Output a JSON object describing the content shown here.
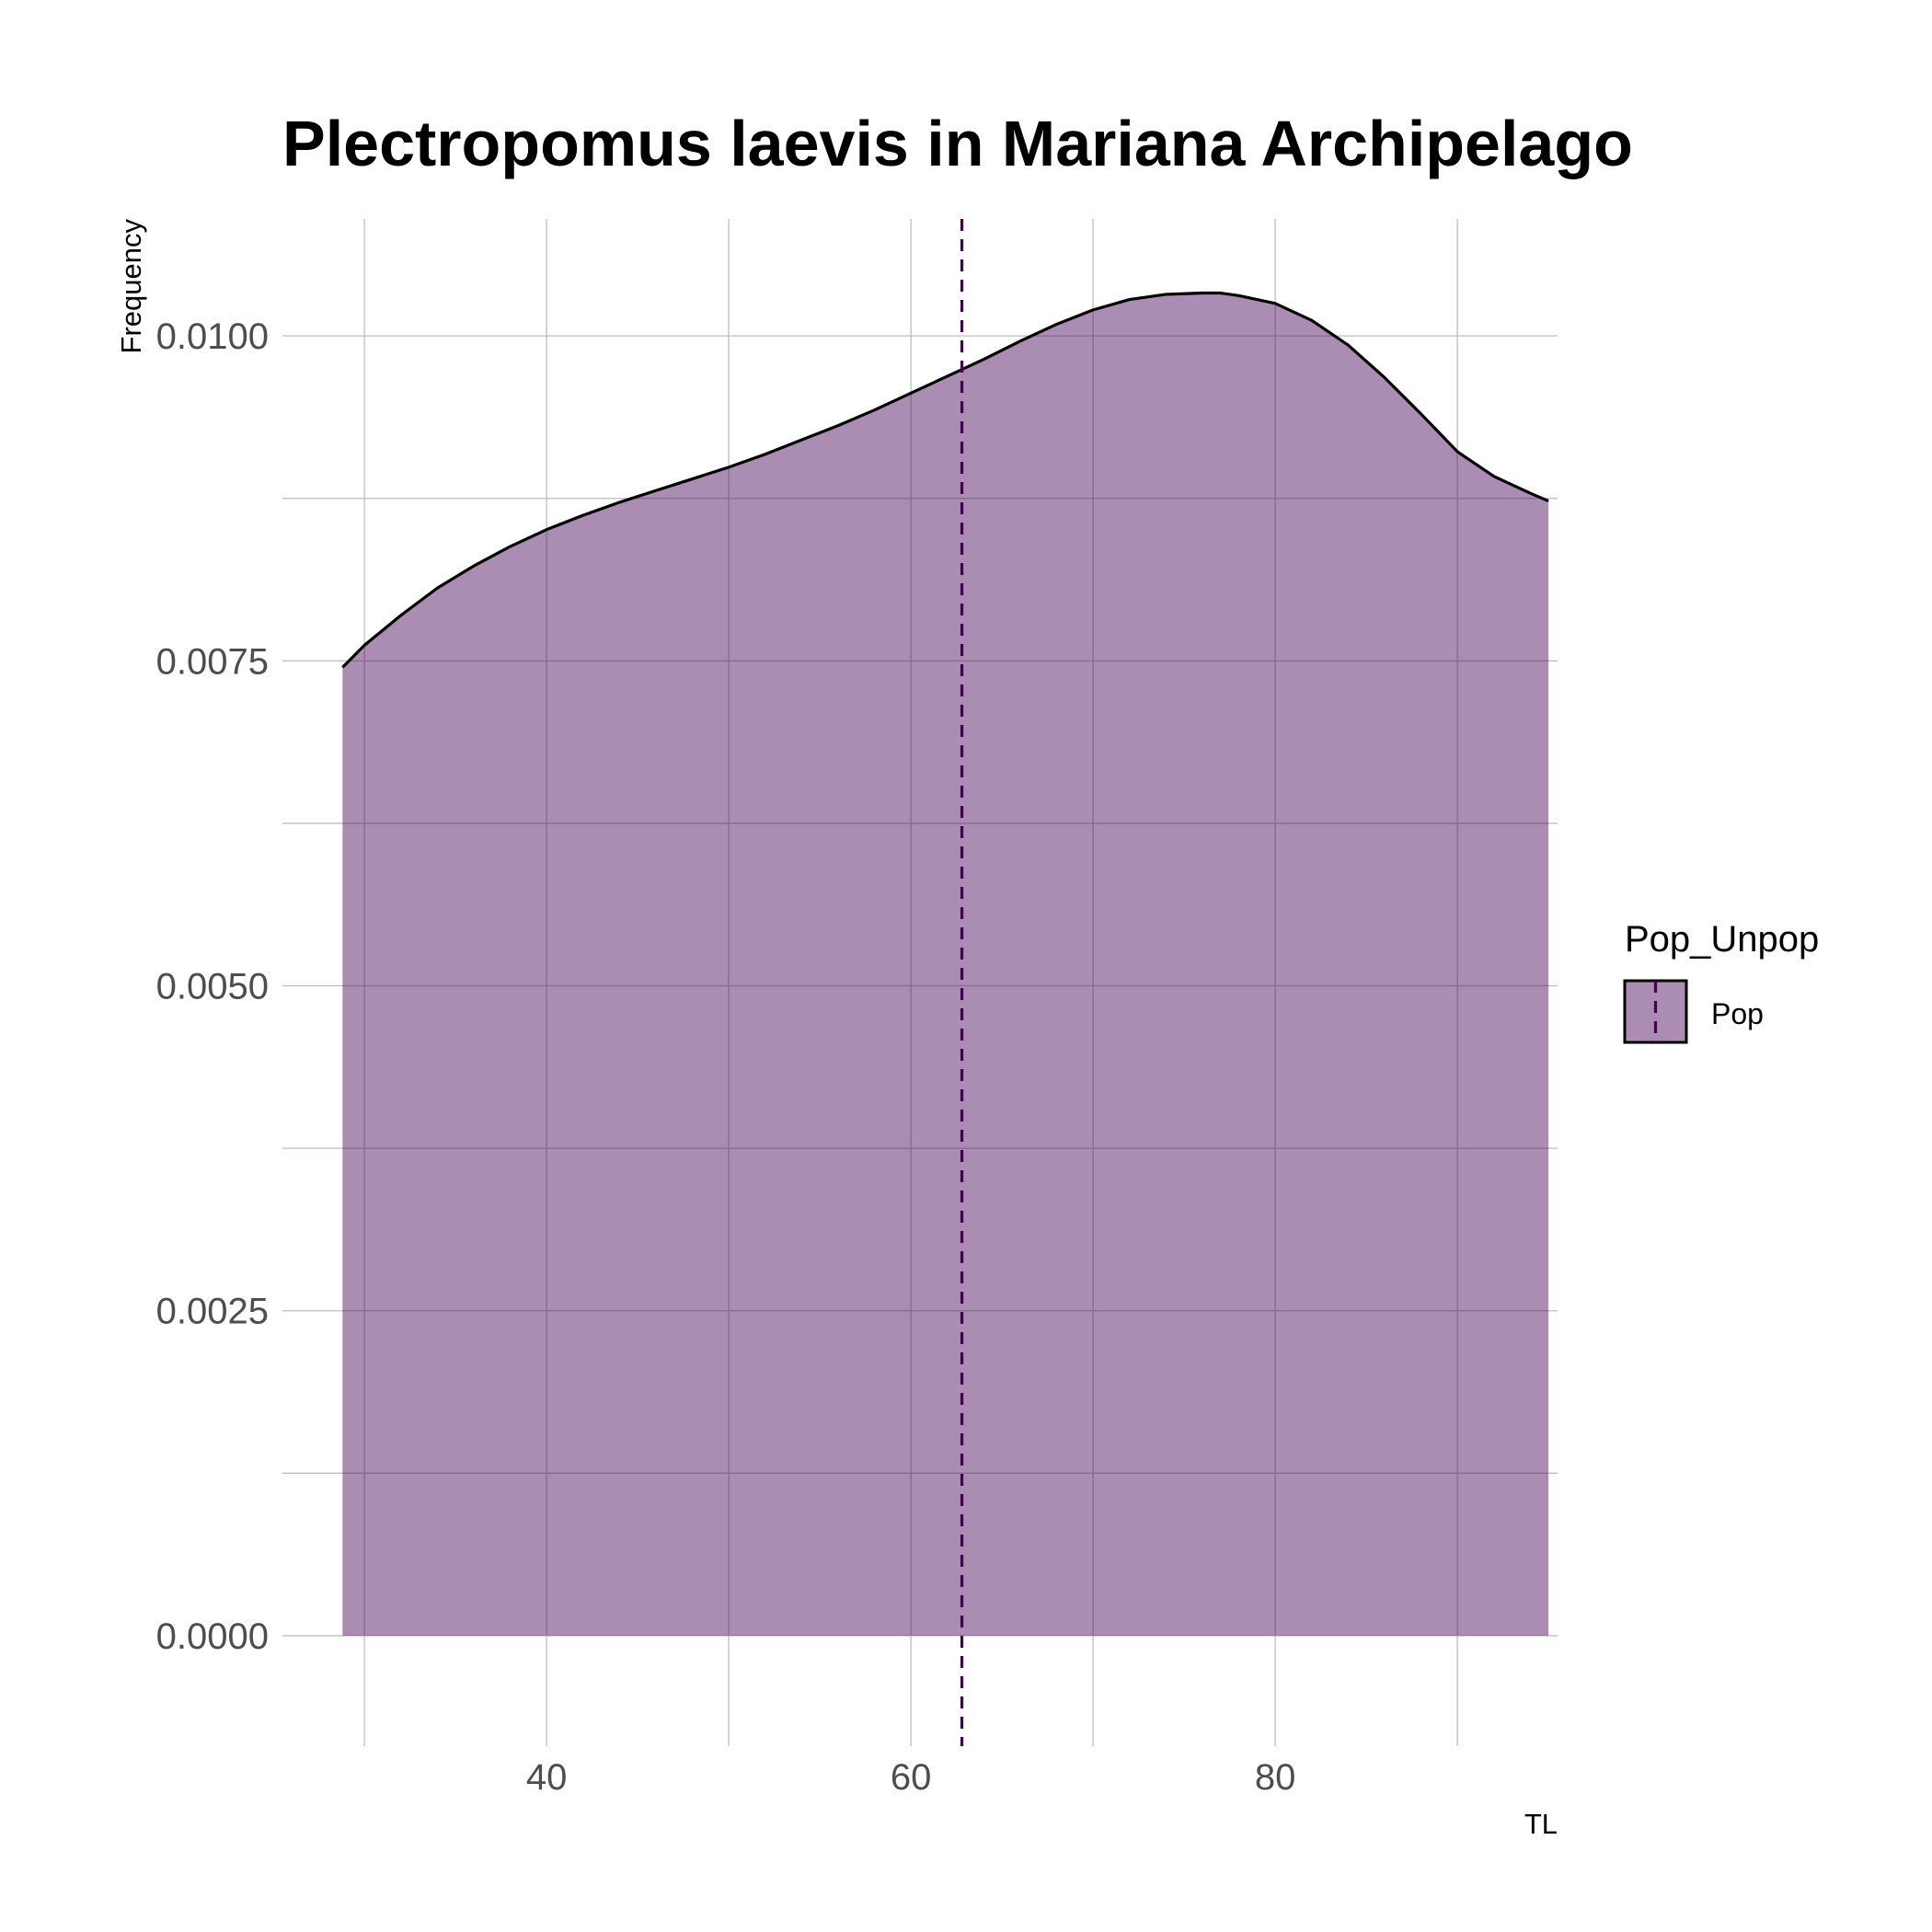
{
  "chart_data": {
    "type": "area",
    "title": "Plectropomus laevis in Mariana Archipelago",
    "xlabel": "TL",
    "ylabel": "Frequency",
    "xlim": [
      25.5,
      95.5
    ],
    "ylim": [
      -0.00085,
      0.0109
    ],
    "x_ticks": [
      {
        "value": 40,
        "label": "40"
      },
      {
        "value": 60,
        "label": "60"
      },
      {
        "value": 80,
        "label": "80"
      }
    ],
    "x_minor_gridlines": [
      30,
      50,
      70,
      90
    ],
    "y_ticks": [
      {
        "value": 0.0,
        "label": "0.0000"
      },
      {
        "value": 0.0025,
        "label": "0.0025"
      },
      {
        "value": 0.005,
        "label": "0.0050"
      },
      {
        "value": 0.0075,
        "label": "0.0075"
      },
      {
        "value": 0.01,
        "label": "0.0100"
      }
    ],
    "y_minor_gridlines": [
      0.00125,
      0.00375,
      0.00625,
      0.00875
    ],
    "grid": true,
    "legend": {
      "title": "Pop_Unpop",
      "position": "right",
      "entries": [
        {
          "label": "Pop",
          "color": "#440154"
        }
      ]
    },
    "series": [
      {
        "name": "Pop",
        "fill_color": "#440154",
        "fill_opacity": 0.45,
        "line_color": "#000000",
        "x": [
          28.8,
          30,
          32,
          34,
          36,
          38,
          40,
          42,
          44,
          46,
          48,
          50,
          52,
          54,
          56,
          58,
          60,
          62,
          64,
          66,
          68,
          70,
          72,
          74,
          76,
          77,
          78,
          80,
          82,
          84,
          86,
          88,
          90,
          92,
          94,
          95
        ],
        "y": [
          0.00745,
          0.00762,
          0.00785,
          0.00806,
          0.00823,
          0.00838,
          0.00851,
          0.00862,
          0.00872,
          0.00881,
          0.0089,
          0.00899,
          0.00909,
          0.0092,
          0.00931,
          0.00943,
          0.00956,
          0.00969,
          0.00982,
          0.00996,
          0.01009,
          0.0102,
          0.01028,
          0.01032,
          0.01033,
          0.01033,
          0.01031,
          0.01025,
          0.01012,
          0.00993,
          0.00968,
          0.0094,
          0.00911,
          0.00892,
          0.00879,
          0.00873
        ]
      }
    ],
    "reference_line": {
      "type": "vline",
      "x": 62.8,
      "color": "#440154",
      "style": "dashed"
    }
  }
}
